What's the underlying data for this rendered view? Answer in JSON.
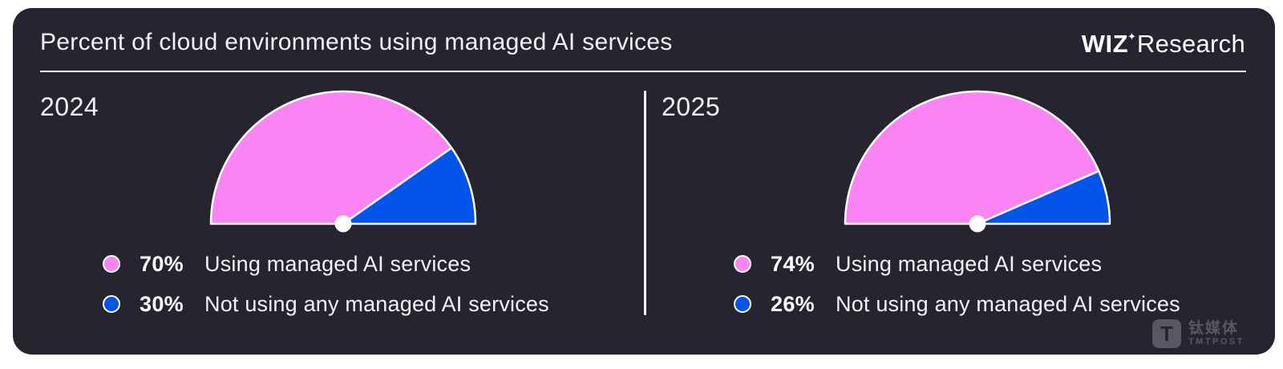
{
  "header": {
    "title": "Percent of cloud environments using managed AI services",
    "logo": {
      "wiz": "WIZ",
      "star": "✦",
      "research": "Research"
    }
  },
  "colors": {
    "pink": "#FA84F3",
    "blue": "#0355EA",
    "card_bg": "#272431",
    "page_bg": "#FFFFFF",
    "text": "#F3F1F6",
    "line": "#FFFFFF"
  },
  "chart_data": [
    {
      "type": "pie",
      "variant": "semicircle-gauge",
      "year": "2024",
      "segments": [
        {
          "label": "Using managed AI services",
          "value": 70,
          "pct_label": "70%",
          "color_key": "pink"
        },
        {
          "label": "Not using any managed AI services",
          "value": 30,
          "pct_label": "30%",
          "color_key": "blue"
        }
      ],
      "display": {
        "blue_wedge_sweep_deg": 35
      }
    },
    {
      "type": "pie",
      "variant": "semicircle-gauge",
      "year": "2025",
      "segments": [
        {
          "label": "Using managed AI services",
          "value": 74,
          "pct_label": "74%",
          "color_key": "pink"
        },
        {
          "label": "Not using any managed AI services",
          "value": 26,
          "pct_label": "26%",
          "color_key": "blue"
        }
      ],
      "display": {
        "blue_wedge_sweep_deg": 23.5
      }
    }
  ],
  "watermark": {
    "logo_letter": "T",
    "cn": "钛媒体",
    "en": "TMTPOST"
  }
}
